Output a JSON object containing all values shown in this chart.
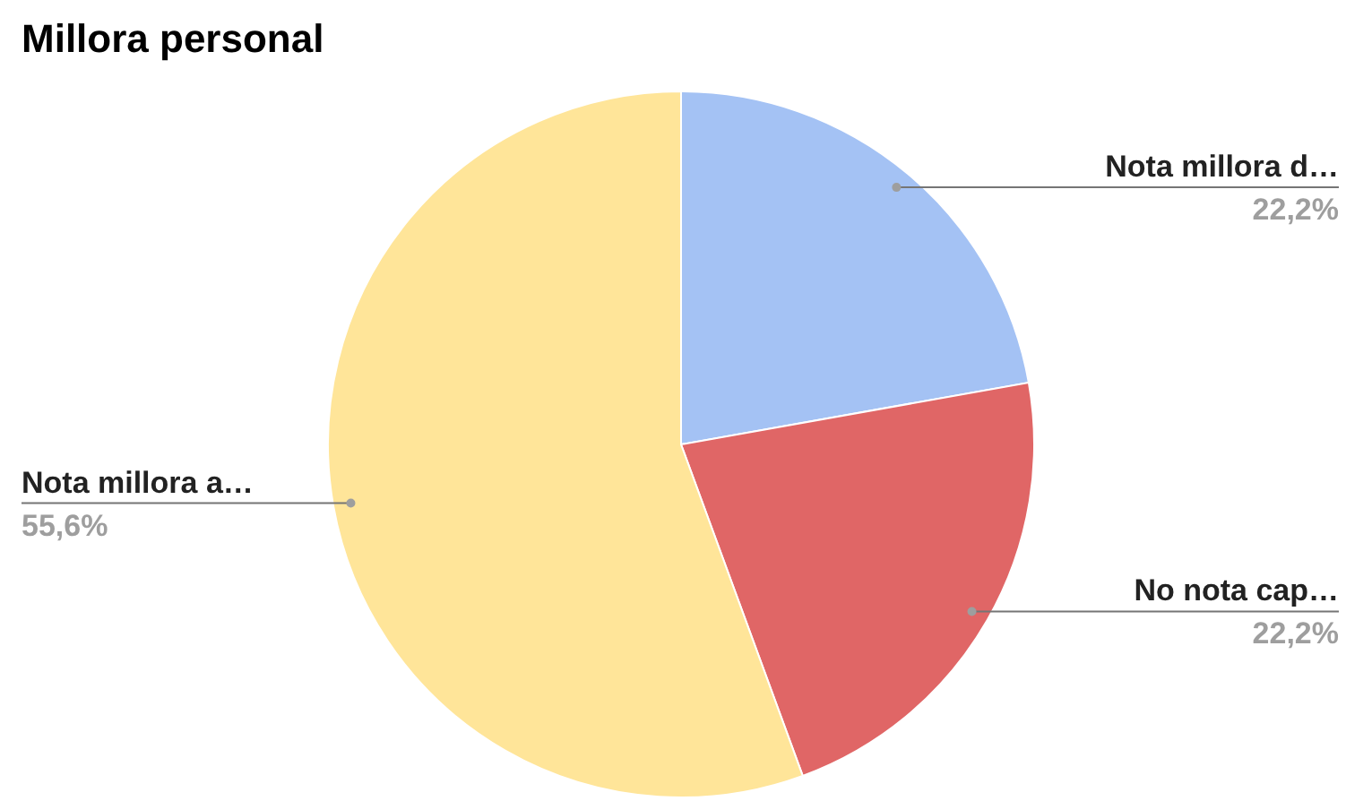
{
  "chart_data": {
    "type": "pie",
    "title": "Millora personal",
    "categories": [
      "Nota millora d…",
      "No nota cap…",
      "Nota millora a…"
    ],
    "values": [
      22.2,
      22.2,
      55.6
    ],
    "colors": [
      "#a4c2f4",
      "#e06666",
      "#ffe599"
    ],
    "value_labels": [
      "22,2%",
      "22,2%",
      "55,6%"
    ]
  }
}
